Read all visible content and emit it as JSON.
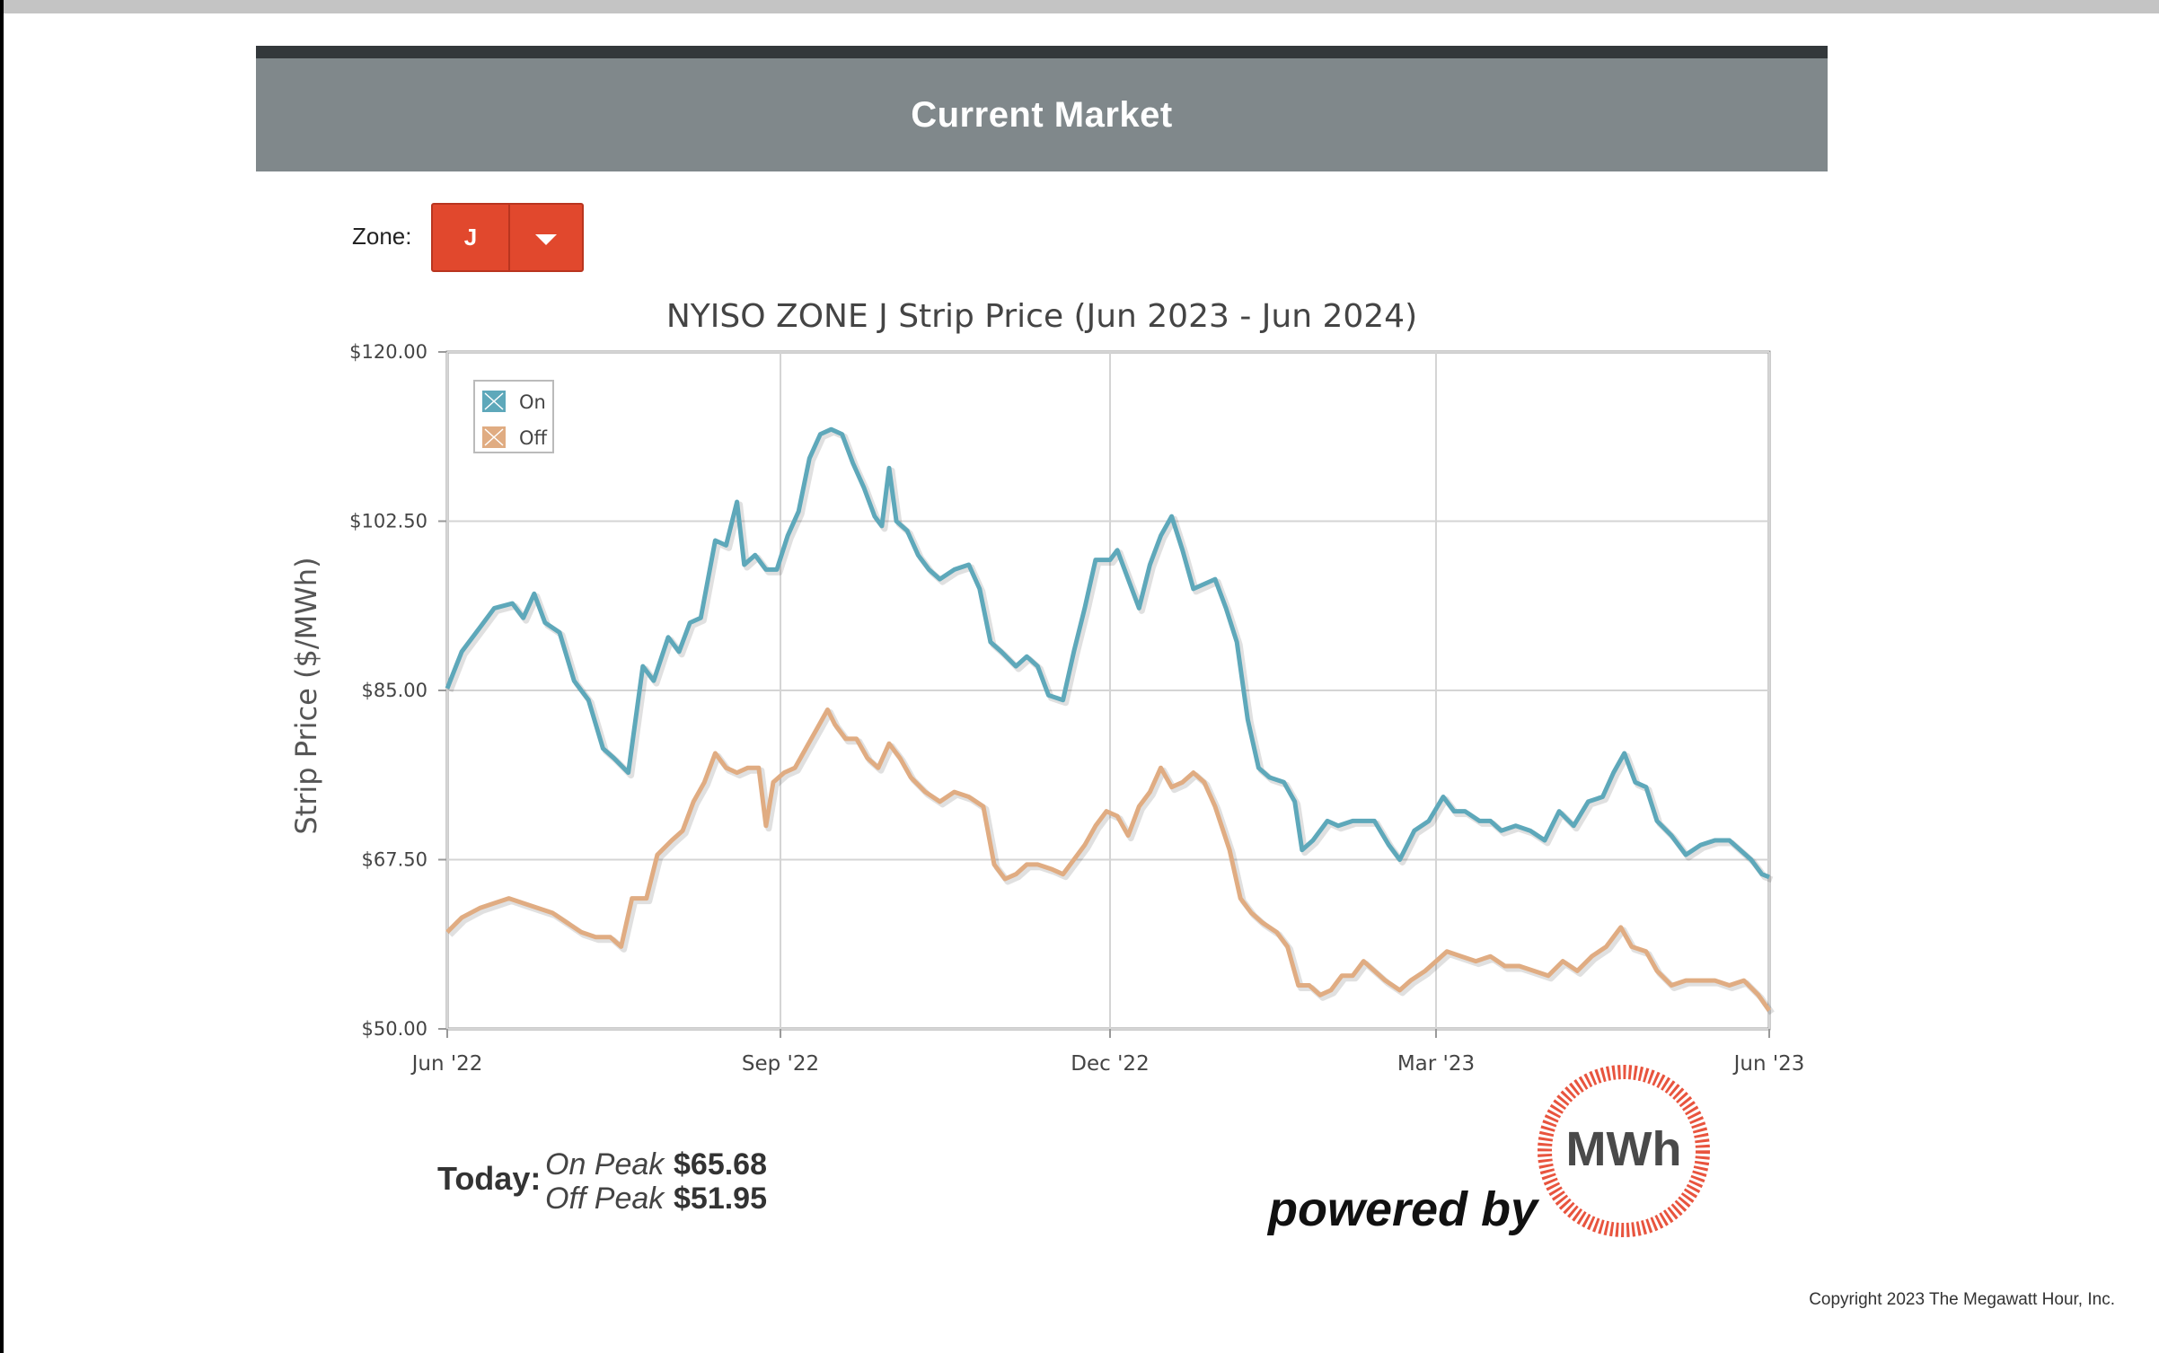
{
  "header": {
    "title": "Current Market"
  },
  "zone": {
    "label": "Zone:",
    "selected": "J",
    "accent": "#e1482d"
  },
  "today": {
    "label": "Today:",
    "on_peak_label": "On Peak",
    "on_peak_value": "$65.68",
    "off_peak_label": "Off Peak",
    "off_peak_value": "$51.95"
  },
  "branding": {
    "powered_by": "powered by",
    "logo_text": "MWh"
  },
  "footer": {
    "copyright": "Copyright 2023 The Megawatt Hour, Inc."
  },
  "chart_data": {
    "type": "line",
    "title": "NYISO ZONE J Strip Price (Jun 2023 - Jun 2024)",
    "ylabel": "Strip Price ($/MWh)",
    "xlabel": "",
    "x_range": [
      "2022-06-01",
      "2023-06-01"
    ],
    "ylim": [
      50,
      120
    ],
    "y_ticks": [
      50,
      67.5,
      85,
      102.5,
      120
    ],
    "y_tick_labels": [
      "$50.00",
      "$67.50",
      "$85.00",
      "$102.50",
      "$120.00"
    ],
    "x_ticks": [
      "2022-06-01",
      "2022-09-01",
      "2022-12-01",
      "2023-03-01",
      "2023-06-01"
    ],
    "x_tick_labels": [
      "Jun '22",
      "Sep '22",
      "Dec '22",
      "Mar '23",
      "Jun '23"
    ],
    "grid": true,
    "legend_position": "top-left",
    "series": [
      {
        "name": "On",
        "color": "#5ea8ba",
        "points": [
          [
            "2022-06-01",
            85.2
          ],
          [
            "2022-06-05",
            89.0
          ],
          [
            "2022-06-10",
            91.5
          ],
          [
            "2022-06-14",
            93.5
          ],
          [
            "2022-06-19",
            94.0
          ],
          [
            "2022-06-22",
            92.5
          ],
          [
            "2022-06-25",
            95.0
          ],
          [
            "2022-06-28",
            92.0
          ],
          [
            "2022-07-02",
            91.0
          ],
          [
            "2022-07-06",
            86.0
          ],
          [
            "2022-07-10",
            84.0
          ],
          [
            "2022-07-14",
            79.0
          ],
          [
            "2022-07-17",
            78.0
          ],
          [
            "2022-07-21",
            76.5
          ],
          [
            "2022-07-25",
            87.5
          ],
          [
            "2022-07-28",
            86.0
          ],
          [
            "2022-08-01",
            90.5
          ],
          [
            "2022-08-04",
            89.0
          ],
          [
            "2022-08-07",
            92.0
          ],
          [
            "2022-08-10",
            92.5
          ],
          [
            "2022-08-14",
            100.5
          ],
          [
            "2022-08-17",
            100.0
          ],
          [
            "2022-08-20",
            104.5
          ],
          [
            "2022-08-22",
            98.0
          ],
          [
            "2022-08-25",
            99.0
          ],
          [
            "2022-08-28",
            97.5
          ],
          [
            "2022-08-31",
            97.5
          ],
          [
            "2022-09-03",
            101.0
          ],
          [
            "2022-09-06",
            103.5
          ],
          [
            "2022-09-09",
            109.0
          ],
          [
            "2022-09-12",
            111.5
          ],
          [
            "2022-09-15",
            112.0
          ],
          [
            "2022-09-18",
            111.5
          ],
          [
            "2022-09-21",
            108.5
          ],
          [
            "2022-09-24",
            106.0
          ],
          [
            "2022-09-27",
            103.0
          ],
          [
            "2022-09-29",
            102.0
          ],
          [
            "2022-10-01",
            108.0
          ],
          [
            "2022-10-03",
            102.5
          ],
          [
            "2022-10-06",
            101.5
          ],
          [
            "2022-10-09",
            99.0
          ],
          [
            "2022-10-12",
            97.5
          ],
          [
            "2022-10-15",
            96.5
          ],
          [
            "2022-10-19",
            97.5
          ],
          [
            "2022-10-23",
            98.0
          ],
          [
            "2022-10-26",
            95.5
          ],
          [
            "2022-10-29",
            90.0
          ],
          [
            "2022-11-01",
            89.0
          ],
          [
            "2022-11-05",
            87.5
          ],
          [
            "2022-11-08",
            88.5
          ],
          [
            "2022-11-11",
            87.5
          ],
          [
            "2022-11-14",
            84.5
          ],
          [
            "2022-11-18",
            84.0
          ],
          [
            "2022-11-21",
            89.0
          ],
          [
            "2022-11-24",
            93.5
          ],
          [
            "2022-11-27",
            98.5
          ],
          [
            "2022-12-01",
            98.5
          ],
          [
            "2022-12-03",
            99.5
          ],
          [
            "2022-12-06",
            96.5
          ],
          [
            "2022-12-09",
            93.5
          ],
          [
            "2022-12-12",
            98.0
          ],
          [
            "2022-12-15",
            101.0
          ],
          [
            "2022-12-18",
            103.0
          ],
          [
            "2022-12-21",
            99.5
          ],
          [
            "2022-12-24",
            95.5
          ],
          [
            "2022-12-27",
            96.0
          ],
          [
            "2022-12-30",
            96.5
          ],
          [
            "2023-01-02",
            93.5
          ],
          [
            "2023-01-05",
            90.0
          ],
          [
            "2023-01-08",
            82.0
          ],
          [
            "2023-01-11",
            77.0
          ],
          [
            "2023-01-14",
            76.0
          ],
          [
            "2023-01-18",
            75.5
          ],
          [
            "2023-01-21",
            73.5
          ],
          [
            "2023-01-23",
            68.5
          ],
          [
            "2023-01-26",
            69.5
          ],
          [
            "2023-01-30",
            71.5
          ],
          [
            "2023-02-02",
            71.0
          ],
          [
            "2023-02-06",
            71.5
          ],
          [
            "2023-02-09",
            71.5
          ],
          [
            "2023-02-12",
            71.5
          ],
          [
            "2023-02-16",
            69.0
          ],
          [
            "2023-02-19",
            67.5
          ],
          [
            "2023-02-23",
            70.5
          ],
          [
            "2023-02-27",
            71.5
          ],
          [
            "2023-03-03",
            74.0
          ],
          [
            "2023-03-06",
            72.5
          ],
          [
            "2023-03-09",
            72.5
          ],
          [
            "2023-03-13",
            71.5
          ],
          [
            "2023-03-16",
            71.5
          ],
          [
            "2023-03-19",
            70.5
          ],
          [
            "2023-03-23",
            71.0
          ],
          [
            "2023-03-27",
            70.5
          ],
          [
            "2023-03-31",
            69.5
          ],
          [
            "2023-04-04",
            72.5
          ],
          [
            "2023-04-08",
            71.0
          ],
          [
            "2023-04-12",
            73.5
          ],
          [
            "2023-04-16",
            74.0
          ],
          [
            "2023-04-19",
            76.5
          ],
          [
            "2023-04-22",
            78.5
          ],
          [
            "2023-04-25",
            75.5
          ],
          [
            "2023-04-28",
            75.0
          ],
          [
            "2023-05-01",
            71.5
          ],
          [
            "2023-05-05",
            70.0
          ],
          [
            "2023-05-09",
            68.0
          ],
          [
            "2023-05-13",
            69.0
          ],
          [
            "2023-05-17",
            69.5
          ],
          [
            "2023-05-21",
            69.5
          ],
          [
            "2023-05-24",
            68.5
          ],
          [
            "2023-05-27",
            67.5
          ],
          [
            "2023-05-30",
            66.0
          ],
          [
            "2023-06-01",
            65.7
          ]
        ]
      },
      {
        "name": "Off",
        "color": "#e0ac82",
        "points": [
          [
            "2022-06-01",
            60.0
          ],
          [
            "2022-06-05",
            61.5
          ],
          [
            "2022-06-10",
            62.5
          ],
          [
            "2022-06-14",
            63.0
          ],
          [
            "2022-06-18",
            63.5
          ],
          [
            "2022-06-22",
            63.0
          ],
          [
            "2022-06-26",
            62.5
          ],
          [
            "2022-06-30",
            62.0
          ],
          [
            "2022-07-04",
            61.0
          ],
          [
            "2022-07-08",
            60.0
          ],
          [
            "2022-07-12",
            59.5
          ],
          [
            "2022-07-16",
            59.5
          ],
          [
            "2022-07-19",
            58.5
          ],
          [
            "2022-07-22",
            63.5
          ],
          [
            "2022-07-26",
            63.5
          ],
          [
            "2022-07-29",
            68.0
          ],
          [
            "2022-08-02",
            69.5
          ],
          [
            "2022-08-05",
            70.5
          ],
          [
            "2022-08-08",
            73.5
          ],
          [
            "2022-08-11",
            75.5
          ],
          [
            "2022-08-14",
            78.5
          ],
          [
            "2022-08-17",
            77.0
          ],
          [
            "2022-08-20",
            76.5
          ],
          [
            "2022-08-23",
            77.0
          ],
          [
            "2022-08-26",
            77.0
          ],
          [
            "2022-08-28",
            71.0
          ],
          [
            "2022-08-30",
            75.5
          ],
          [
            "2022-09-02",
            76.5
          ],
          [
            "2022-09-05",
            77.0
          ],
          [
            "2022-09-08",
            79.0
          ],
          [
            "2022-09-11",
            81.0
          ],
          [
            "2022-09-14",
            83.0
          ],
          [
            "2022-09-16",
            81.5
          ],
          [
            "2022-09-19",
            80.0
          ],
          [
            "2022-09-22",
            80.0
          ],
          [
            "2022-09-25",
            78.0
          ],
          [
            "2022-09-28",
            77.0
          ],
          [
            "2022-10-01",
            79.5
          ],
          [
            "2022-10-04",
            78.0
          ],
          [
            "2022-10-07",
            76.0
          ],
          [
            "2022-10-11",
            74.5
          ],
          [
            "2022-10-15",
            73.5
          ],
          [
            "2022-10-19",
            74.5
          ],
          [
            "2022-10-23",
            74.0
          ],
          [
            "2022-10-27",
            73.0
          ],
          [
            "2022-10-30",
            67.0
          ],
          [
            "2022-11-02",
            65.5
          ],
          [
            "2022-11-05",
            66.0
          ],
          [
            "2022-11-08",
            67.0
          ],
          [
            "2022-11-11",
            67.0
          ],
          [
            "2022-11-15",
            66.5
          ],
          [
            "2022-11-18",
            66.0
          ],
          [
            "2022-11-21",
            67.5
          ],
          [
            "2022-11-24",
            69.0
          ],
          [
            "2022-11-27",
            71.0
          ],
          [
            "2022-11-30",
            72.5
          ],
          [
            "2022-12-03",
            72.0
          ],
          [
            "2022-12-06",
            70.0
          ],
          [
            "2022-12-09",
            73.0
          ],
          [
            "2022-12-12",
            74.5
          ],
          [
            "2022-12-15",
            77.0
          ],
          [
            "2022-12-18",
            75.0
          ],
          [
            "2022-12-21",
            75.5
          ],
          [
            "2022-12-24",
            76.5
          ],
          [
            "2022-12-27",
            75.5
          ],
          [
            "2022-12-30",
            73.0
          ],
          [
            "2023-01-03",
            68.5
          ],
          [
            "2023-01-06",
            63.5
          ],
          [
            "2023-01-09",
            62.0
          ],
          [
            "2023-01-12",
            61.0
          ],
          [
            "2023-01-16",
            60.0
          ],
          [
            "2023-01-19",
            58.5
          ],
          [
            "2023-01-22",
            54.5
          ],
          [
            "2023-01-25",
            54.5
          ],
          [
            "2023-01-28",
            53.5
          ],
          [
            "2023-01-31",
            54.0
          ],
          [
            "2023-02-03",
            55.5
          ],
          [
            "2023-02-06",
            55.5
          ],
          [
            "2023-02-09",
            57.0
          ],
          [
            "2023-02-12",
            56.0
          ],
          [
            "2023-02-15",
            55.0
          ],
          [
            "2023-02-19",
            54.0
          ],
          [
            "2023-02-22",
            55.0
          ],
          [
            "2023-02-26",
            56.0
          ],
          [
            "2023-03-01",
            57.0
          ],
          [
            "2023-03-04",
            58.0
          ],
          [
            "2023-03-08",
            57.5
          ],
          [
            "2023-03-12",
            57.0
          ],
          [
            "2023-03-16",
            57.5
          ],
          [
            "2023-03-20",
            56.5
          ],
          [
            "2023-03-24",
            56.5
          ],
          [
            "2023-03-28",
            56.0
          ],
          [
            "2023-04-01",
            55.5
          ],
          [
            "2023-04-05",
            57.0
          ],
          [
            "2023-04-09",
            56.0
          ],
          [
            "2023-04-13",
            57.5
          ],
          [
            "2023-04-17",
            58.5
          ],
          [
            "2023-04-21",
            60.5
          ],
          [
            "2023-04-24",
            58.5
          ],
          [
            "2023-04-28",
            58.0
          ],
          [
            "2023-05-01",
            56.0
          ],
          [
            "2023-05-05",
            54.5
          ],
          [
            "2023-05-09",
            55.0
          ],
          [
            "2023-05-13",
            55.0
          ],
          [
            "2023-05-17",
            55.0
          ],
          [
            "2023-05-21",
            54.5
          ],
          [
            "2023-05-25",
            55.0
          ],
          [
            "2023-05-29",
            53.5
          ],
          [
            "2023-06-01",
            51.9
          ]
        ]
      }
    ]
  }
}
